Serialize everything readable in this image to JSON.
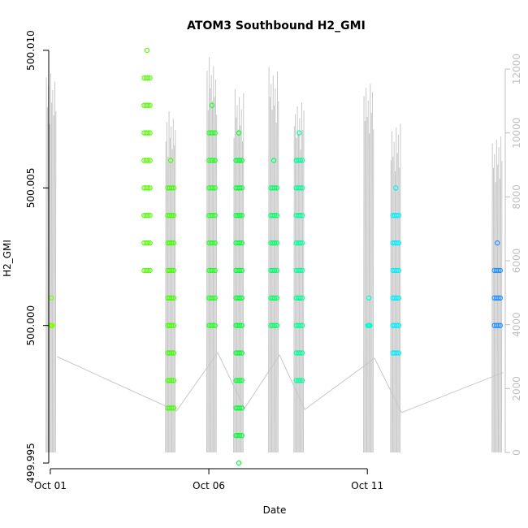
{
  "chart_data": {
    "type": "scatter",
    "title": "ATOM3 Southbound H2_GMI",
    "xlabel": "Date",
    "ylabel": "H2_GMI",
    "x_ticks": [
      {
        "day": 1,
        "label": "Oct 01"
      },
      {
        "day": 6,
        "label": "Oct 06"
      },
      {
        "day": 11,
        "label": "Oct 11"
      }
    ],
    "xlim": [
      0.95,
      15.3
    ],
    "ylim": [
      499.995,
      500.01
    ],
    "y_ticks": [
      {
        "value": 499.995,
        "label": "499.995"
      },
      {
        "value": 500.0,
        "label": "500.000"
      },
      {
        "value": 500.005,
        "label": "500.005"
      },
      {
        "value": 500.01,
        "label": "500.010"
      }
    ],
    "secondary_axis": {
      "ylim": [
        0,
        12000
      ],
      "ticks": [
        {
          "value": 0,
          "label": "0"
        },
        {
          "value": 2000,
          "label": "2000"
        },
        {
          "value": 4000,
          "label": "4000"
        },
        {
          "value": 6000,
          "label": "6000"
        },
        {
          "value": 8000,
          "label": "8000"
        },
        {
          "value": 10000,
          "label": "10000"
        },
        {
          "value": 12000,
          "label": "12000"
        }
      ],
      "line_color": "#c8c8c8"
    },
    "clusters": [
      {
        "day": 1.03,
        "color": "#7fff00",
        "values": [
          500.0,
          500.001
        ]
      },
      {
        "day": 4.05,
        "color": "#55ff00",
        "values": [
          500.002,
          500.003,
          500.004,
          500.005,
          500.006,
          500.007,
          500.008,
          500.009,
          500.01
        ]
      },
      {
        "day": 4.8,
        "color": "#40ff00",
        "values": [
          499.997,
          499.998,
          499.999,
          500.0,
          500.001,
          500.002,
          500.003,
          500.004,
          500.005,
          500.006
        ]
      },
      {
        "day": 6.1,
        "color": "#22ff22",
        "values": [
          500.0,
          500.001,
          500.002,
          500.003,
          500.004,
          500.005,
          500.006,
          500.007,
          500.008
        ]
      },
      {
        "day": 6.95,
        "color": "#00ff33",
        "values": [
          499.995,
          499.996,
          499.997,
          499.998,
          499.999,
          500.0,
          500.001,
          500.002,
          500.003,
          500.004,
          500.005,
          500.006,
          500.007
        ]
      },
      {
        "day": 8.05,
        "color": "#00ff66",
        "values": [
          500.0,
          500.001,
          500.002,
          500.003,
          500.004,
          500.005,
          500.006
        ]
      },
      {
        "day": 8.85,
        "color": "#00ff99",
        "values": [
          499.998,
          499.999,
          500.0,
          500.001,
          500.002,
          500.003,
          500.004,
          500.005,
          500.006,
          500.007
        ]
      },
      {
        "day": 11.05,
        "color": "#00ffcc",
        "values": [
          500.0,
          500.001
        ]
      },
      {
        "day": 11.9,
        "color": "#00eeff",
        "values": [
          499.999,
          500.0,
          500.001,
          500.002,
          500.003,
          500.004,
          500.005
        ]
      },
      {
        "day": 15.1,
        "color": "#1e90ff",
        "values": [
          500.0,
          500.001,
          500.002,
          500.003
        ]
      }
    ],
    "bursts": [
      {
        "day": 1.03,
        "peak": 12000
      },
      {
        "day": 4.8,
        "peak": 10800
      },
      {
        "day": 6.1,
        "peak": 12500
      },
      {
        "day": 6.95,
        "peak": 11500
      },
      {
        "day": 8.05,
        "peak": 12200
      },
      {
        "day": 8.85,
        "peak": 11200
      },
      {
        "day": 11.05,
        "peak": 11800
      },
      {
        "day": 11.9,
        "peak": 10400
      },
      {
        "day": 15.1,
        "peak": 10000
      }
    ],
    "grid": false,
    "legend": "none"
  }
}
